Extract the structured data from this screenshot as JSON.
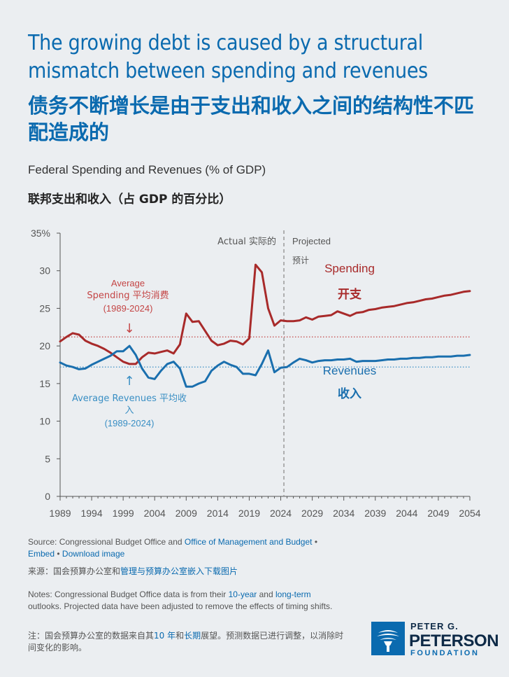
{
  "header": {
    "title": "The growing debt is caused by a structural mismatch between spending and revenues",
    "title_cn": "债务不断增长是由于支出和收入之间的结构性不匹配造成的",
    "subtitle": "Federal Spending and Revenues (% of GDP)",
    "subtitle_cn": "联邦支出和收入（占 GDP 的百分比）"
  },
  "chart_data": {
    "type": "line",
    "xlim": [
      1989,
      2054
    ],
    "ylim": [
      0,
      35
    ],
    "x_ticks": [
      1989,
      1994,
      1999,
      2004,
      2009,
      2014,
      2019,
      2024,
      2029,
      2034,
      2039,
      2044,
      2049,
      2054
    ],
    "y_ticks": [
      0,
      5,
      10,
      15,
      20,
      25,
      30,
      35
    ],
    "y_tick_labels": [
      "0",
      "5",
      "10",
      "15",
      "20",
      "25",
      "30",
      "35%"
    ],
    "divider_x": 2024.5,
    "actual_label": "Actual 实际的",
    "projected_label": "Projected",
    "projected_label_cn": "预计",
    "averages": [
      {
        "name": "Average Spending",
        "value": 21.2,
        "color": "#c44545"
      },
      {
        "name": "Average Revenues",
        "value": 17.2,
        "color": "#3a8fc4"
      }
    ],
    "avg_spending_label": [
      "Average",
      "Spending 平均消费",
      "(1989-2024)"
    ],
    "avg_spending_arrow": "↓",
    "avg_revenues_label": [
      "Average Revenues 平均收",
      "入",
      "(1989-2024)"
    ],
    "avg_revenues_arrow": "↑",
    "series": [
      {
        "name": "Spending",
        "name_cn": "开支",
        "color": "#a82a2a",
        "x": [
          1989,
          1990,
          1991,
          1992,
          1993,
          1994,
          1995,
          1996,
          1997,
          1998,
          1999,
          2000,
          2001,
          2002,
          2003,
          2004,
          2005,
          2006,
          2007,
          2008,
          2009,
          2010,
          2011,
          2012,
          2013,
          2014,
          2015,
          2016,
          2017,
          2018,
          2019,
          2020,
          2021,
          2022,
          2023,
          2024,
          2025,
          2026,
          2027,
          2028,
          2029,
          2030,
          2031,
          2032,
          2033,
          2034,
          2035,
          2036,
          2037,
          2038,
          2039,
          2040,
          2041,
          2042,
          2043,
          2044,
          2045,
          2046,
          2047,
          2048,
          2049,
          2050,
          2051,
          2052,
          2053,
          2054
        ],
        "values": [
          20.6,
          21.2,
          21.7,
          21.5,
          20.7,
          20.3,
          20.0,
          19.6,
          19.1,
          18.5,
          17.9,
          17.6,
          17.6,
          18.5,
          19.1,
          19.0,
          19.2,
          19.4,
          19.0,
          20.2,
          24.3,
          23.2,
          23.3,
          22.0,
          20.7,
          20.1,
          20.3,
          20.7,
          20.6,
          20.2,
          21.0,
          30.8,
          29.8,
          25.0,
          22.7,
          23.4,
          23.3,
          23.3,
          23.4,
          23.8,
          23.5,
          23.9,
          24.0,
          24.1,
          24.6,
          24.3,
          24.0,
          24.4,
          24.5,
          24.8,
          24.9,
          25.1,
          25.2,
          25.3,
          25.5,
          25.7,
          25.8,
          26.0,
          26.2,
          26.3,
          26.5,
          26.7,
          26.8,
          27.0,
          27.2,
          27.3
        ]
      },
      {
        "name": "Revenues",
        "name_cn": "收入",
        "color": "#1a6fae",
        "x": [
          1989,
          1990,
          1991,
          1992,
          1993,
          1994,
          1995,
          1996,
          1997,
          1998,
          1999,
          2000,
          2001,
          2002,
          2003,
          2004,
          2005,
          2006,
          2007,
          2008,
          2009,
          2010,
          2011,
          2012,
          2013,
          2014,
          2015,
          2016,
          2017,
          2018,
          2019,
          2020,
          2021,
          2022,
          2023,
          2024,
          2025,
          2026,
          2027,
          2028,
          2029,
          2030,
          2031,
          2032,
          2033,
          2034,
          2035,
          2036,
          2037,
          2038,
          2039,
          2040,
          2041,
          2042,
          2043,
          2044,
          2045,
          2046,
          2047,
          2048,
          2049,
          2050,
          2051,
          2052,
          2053,
          2054
        ],
        "values": [
          17.8,
          17.4,
          17.2,
          16.9,
          17.0,
          17.5,
          17.9,
          18.3,
          18.7,
          19.3,
          19.3,
          20.0,
          18.8,
          17.0,
          15.8,
          15.6,
          16.7,
          17.6,
          17.9,
          17.0,
          14.6,
          14.6,
          15.0,
          15.3,
          16.7,
          17.4,
          17.9,
          17.5,
          17.2,
          16.3,
          16.3,
          16.1,
          17.6,
          19.4,
          16.5,
          17.1,
          17.2,
          17.8,
          18.3,
          18.1,
          17.8,
          18.0,
          18.1,
          18.1,
          18.2,
          18.2,
          18.3,
          17.9,
          18.0,
          18.0,
          18.0,
          18.1,
          18.2,
          18.2,
          18.3,
          18.3,
          18.4,
          18.4,
          18.5,
          18.5,
          18.6,
          18.6,
          18.6,
          18.7,
          18.7,
          18.8
        ]
      }
    ]
  },
  "footer": {
    "source_prefix": "Source: Congressional Budget Office and ",
    "source_link": "Office of Management and Budget",
    "bullet": "•",
    "embed": "Embed",
    "download": "Download image",
    "source_cn_prefix": "来源：国会预算办公室和",
    "source_cn_link": "管理与预算办公室嵌入下载图片",
    "notes_1": "Notes: Congressional Budget Office data is from their ",
    "notes_link1": "10-year",
    "notes_and": " and ",
    "notes_link2": "long-term",
    "notes_2": "outlooks. Projected data have been adjusted to remove the effects of timing shifts.",
    "notes_cn_1": "注：国会预算办公室的数据来自其",
    "notes_cn_link1": "10 年",
    "notes_cn_and": "和",
    "notes_cn_link2": "长期",
    "notes_cn_2": "展望。预测数据已进行调整，以消除时间变化的影响。"
  },
  "logo": {
    "line1": "PETER G.",
    "line2": "PETERSON",
    "line3": "FOUNDATION"
  }
}
